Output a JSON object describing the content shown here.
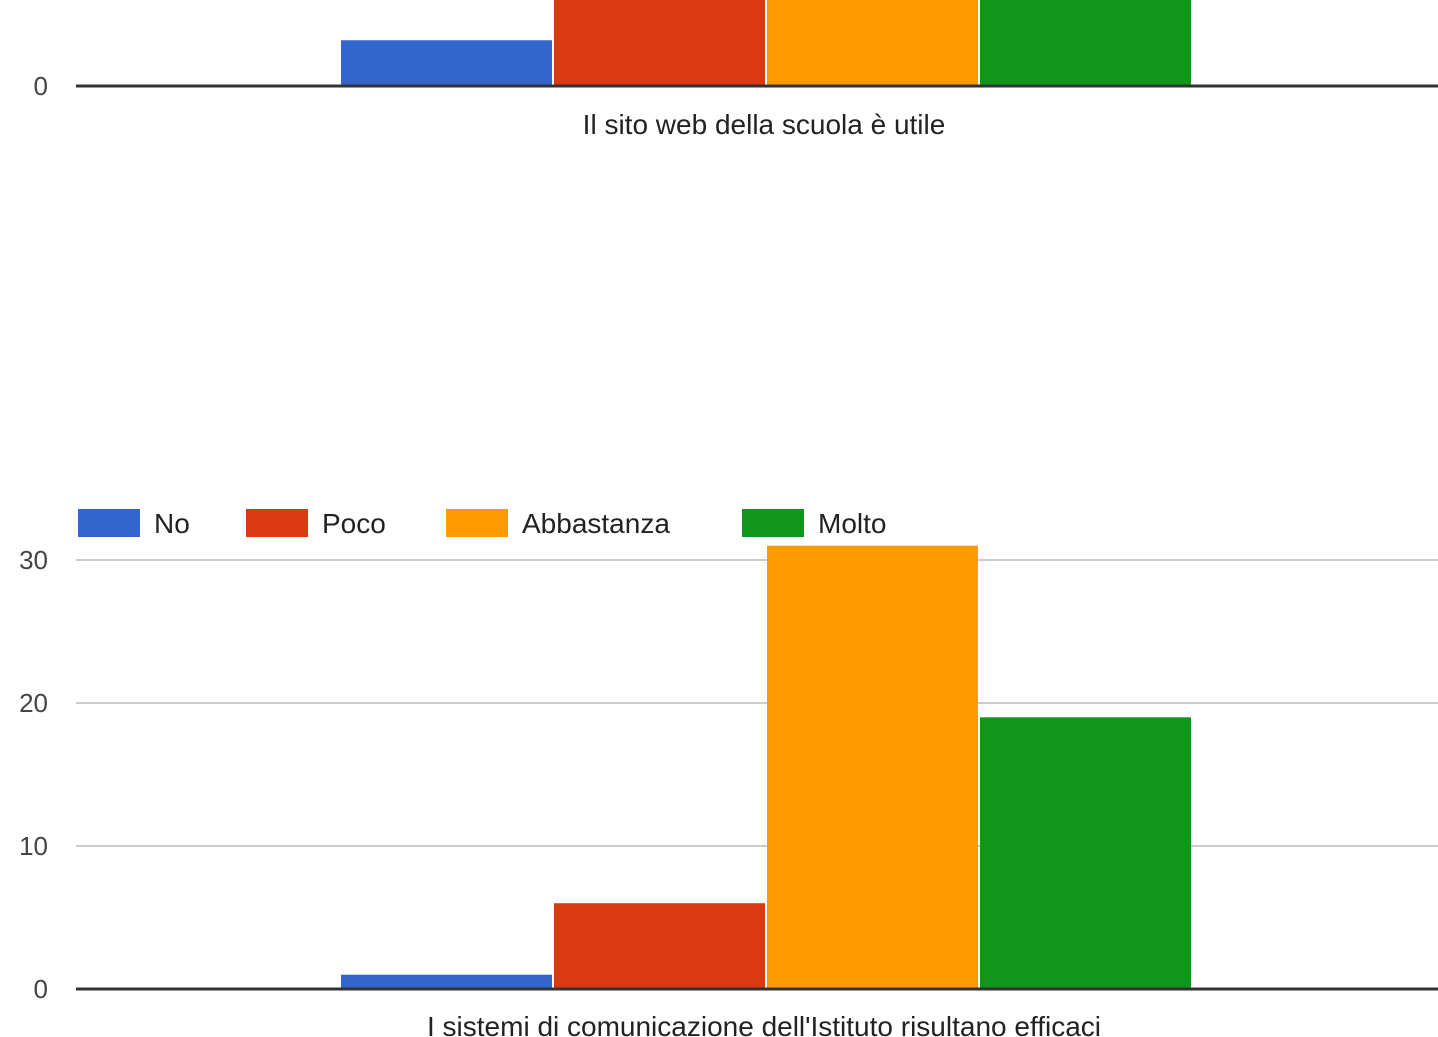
{
  "chart_data": [
    {
      "type": "bar",
      "categories": [
        "Il sito web della scuola è utile"
      ],
      "series": [
        {
          "name": "No",
          "color": "#3366cc",
          "values": [
            3.2
          ]
        },
        {
          "name": "Poco",
          "color": "#dc3912",
          "values": [
            null
          ]
        },
        {
          "name": "Abbastanza",
          "color": "#ff9900",
          "values": [
            null
          ]
        },
        {
          "name": "Molto",
          "color": "#109618",
          "values": [
            null
          ]
        }
      ],
      "y_ticks": [
        "0"
      ],
      "ylim": [
        0,
        6
      ],
      "grid": true,
      "note": "Chart is cropped at the top; only the 0 tick and bar bases are visible."
    },
    {
      "type": "bar",
      "categories": [
        "I sistemi di comunicazione dell'Istituto risultano efficaci"
      ],
      "series": [
        {
          "name": "No",
          "color": "#3366cc",
          "values": [
            1
          ]
        },
        {
          "name": "Poco",
          "color": "#dc3912",
          "values": [
            6
          ]
        },
        {
          "name": "Abbastanza",
          "color": "#ff9900",
          "values": [
            31
          ]
        },
        {
          "name": "Molto",
          "color": "#109618",
          "values": [
            19
          ]
        }
      ],
      "y_ticks": [
        "0",
        "10",
        "20",
        "30"
      ],
      "ylim": [
        0,
        31
      ],
      "grid": true,
      "legend": "top-left"
    }
  ]
}
